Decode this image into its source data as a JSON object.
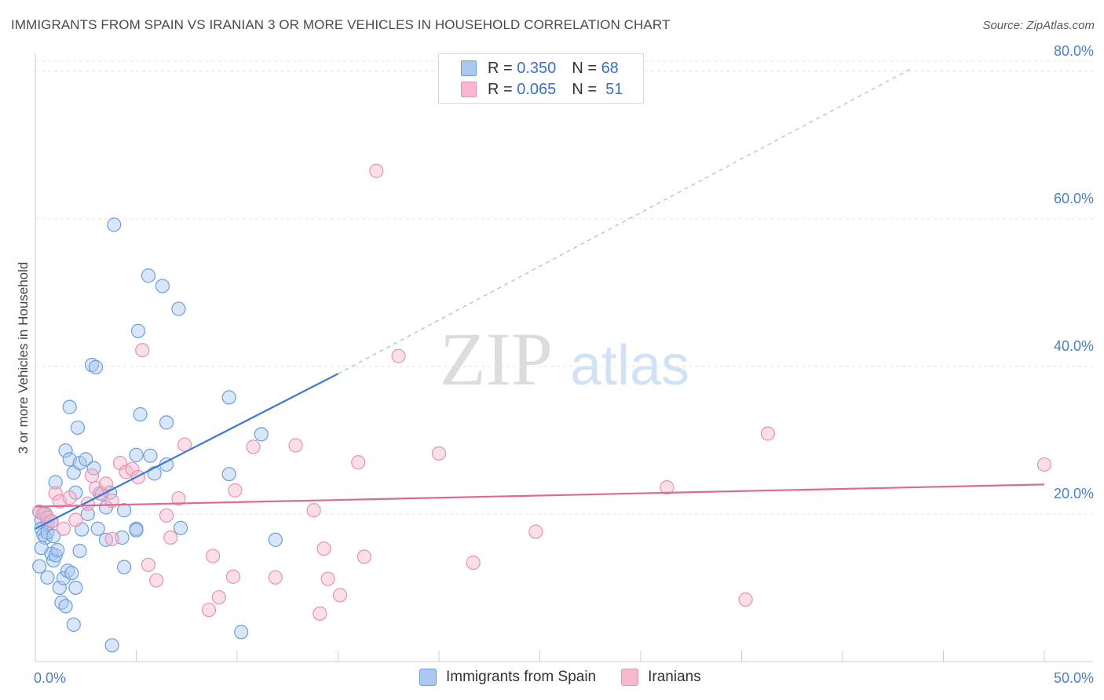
{
  "header": {
    "title": "IMMIGRANTS FROM SPAIN VS IRANIAN 3 OR MORE VEHICLES IN HOUSEHOLD CORRELATION CHART",
    "source": "Source: ZipAtlas.com"
  },
  "watermark": {
    "zip": "ZIP",
    "atlas": "atlas"
  },
  "legend": {
    "rows": [
      {
        "r_label": "R =",
        "r_value": "0.350",
        "n_label": "N =",
        "n_value": "68",
        "color": "#aac8f0"
      },
      {
        "r_label": "R =",
        "r_value": "0.065",
        "n_label": "N =",
        "n_value": "51",
        "color": "#f5b8cc"
      }
    ]
  },
  "bottom_legend": [
    {
      "label": "Immigrants from Spain",
      "color": "#aac8f0"
    },
    {
      "label": "Iranians",
      "color": "#f5b8cc"
    }
  ],
  "chart_data": {
    "type": "scatter",
    "title": "IMMIGRANTS FROM SPAIN VS IRANIAN 3 OR MORE VEHICLES IN HOUSEHOLD CORRELATION CHART",
    "xlabel": "",
    "ylabel": "3 or more Vehicles in Household",
    "xlim": [
      0,
      50
    ],
    "ylim": [
      0,
      82
    ],
    "x_tick_labels": [
      "0.0%",
      "50.0%"
    ],
    "y_ticks": [
      20,
      40,
      60,
      80
    ],
    "y_tick_labels": [
      "20.0%",
      "40.0%",
      "60.0%",
      "80.0%"
    ],
    "grid": true,
    "series": [
      {
        "name": "Immigrants from Spain",
        "color": "#6a9ee0",
        "fill": "#aac8f0",
        "trend": {
          "x0": 0,
          "y0": 18.0,
          "x1": 15,
          "y1": 39.0,
          "dashed_to_x": 43.5,
          "dashed_to_y": 80.5,
          "color": "#3a78d0"
        },
        "points": [
          [
            0.2,
            20.3
          ],
          [
            0.3,
            19.2
          ],
          [
            0.5,
            20.0
          ],
          [
            0.6,
            18.7
          ],
          [
            0.8,
            19.0
          ],
          [
            0.3,
            18.0
          ],
          [
            0.4,
            17.2
          ],
          [
            0.5,
            16.8
          ],
          [
            0.6,
            17.5
          ],
          [
            0.9,
            17.0
          ],
          [
            0.3,
            15.4
          ],
          [
            0.8,
            14.6
          ],
          [
            0.9,
            13.7
          ],
          [
            1.0,
            14.4
          ],
          [
            1.1,
            15.1
          ],
          [
            0.2,
            12.9
          ],
          [
            0.6,
            11.4
          ],
          [
            1.2,
            10.0
          ],
          [
            1.4,
            11.3
          ],
          [
            1.6,
            12.3
          ],
          [
            1.8,
            12.0
          ],
          [
            2.0,
            10.0
          ],
          [
            1.3,
            8.0
          ],
          [
            1.5,
            7.5
          ],
          [
            1.9,
            5.0
          ],
          [
            3.8,
            2.2
          ],
          [
            10.2,
            4.0
          ],
          [
            1.0,
            24.3
          ],
          [
            1.5,
            28.6
          ],
          [
            1.7,
            27.4
          ],
          [
            1.9,
            25.6
          ],
          [
            2.0,
            22.9
          ],
          [
            2.2,
            26.9
          ],
          [
            2.5,
            27.4
          ],
          [
            2.9,
            26.2
          ],
          [
            1.7,
            34.5
          ],
          [
            2.1,
            31.7
          ],
          [
            2.8,
            40.2
          ],
          [
            3.0,
            39.9
          ],
          [
            3.2,
            22.8
          ],
          [
            3.5,
            20.9
          ],
          [
            3.5,
            16.5
          ],
          [
            2.6,
            20.0
          ],
          [
            2.3,
            17.9
          ],
          [
            2.2,
            15.0
          ],
          [
            3.1,
            18.0
          ],
          [
            3.7,
            22.9
          ],
          [
            4.3,
            16.8
          ],
          [
            4.4,
            20.5
          ],
          [
            4.4,
            12.8
          ],
          [
            5.0,
            18.0
          ],
          [
            5.0,
            17.8
          ],
          [
            5.0,
            28.0
          ],
          [
            5.2,
            33.5
          ],
          [
            5.7,
            27.9
          ],
          [
            5.9,
            25.5
          ],
          [
            6.5,
            26.7
          ],
          [
            6.5,
            32.4
          ],
          [
            7.2,
            18.1
          ],
          [
            7.1,
            47.8
          ],
          [
            6.3,
            50.9
          ],
          [
            5.6,
            52.3
          ],
          [
            5.1,
            44.8
          ],
          [
            3.9,
            59.2
          ],
          [
            9.6,
            25.4
          ],
          [
            9.6,
            35.8
          ],
          [
            11.2,
            30.8
          ],
          [
            11.9,
            16.5
          ]
        ]
      },
      {
        "name": "Iranians",
        "color": "#e890b0",
        "fill": "#f5b8cc",
        "trend": {
          "x0": 0,
          "y0": 21.0,
          "x1": 50,
          "y1": 24.0,
          "color": "#e06890"
        },
        "points": [
          [
            0.2,
            20.3
          ],
          [
            0.4,
            20.0
          ],
          [
            0.6,
            19.5
          ],
          [
            0.8,
            19.0
          ],
          [
            1.0,
            22.8
          ],
          [
            1.2,
            21.7
          ],
          [
            1.4,
            18.0
          ],
          [
            1.7,
            22.2
          ],
          [
            2.0,
            19.2
          ],
          [
            2.6,
            21.4
          ],
          [
            2.8,
            25.2
          ],
          [
            3.0,
            23.5
          ],
          [
            3.3,
            22.7
          ],
          [
            3.5,
            24.1
          ],
          [
            3.8,
            16.6
          ],
          [
            4.2,
            26.9
          ],
          [
            4.5,
            25.7
          ],
          [
            4.8,
            26.1
          ],
          [
            5.1,
            25.0
          ],
          [
            5.3,
            42.2
          ],
          [
            5.6,
            13.1
          ],
          [
            6.0,
            11.0
          ],
          [
            6.5,
            19.8
          ],
          [
            6.7,
            16.8
          ],
          [
            7.1,
            22.1
          ],
          [
            7.4,
            29.4
          ],
          [
            8.6,
            7.0
          ],
          [
            8.8,
            14.3
          ],
          [
            9.1,
            8.7
          ],
          [
            9.8,
            11.5
          ],
          [
            9.9,
            23.2
          ],
          [
            10.8,
            29.1
          ],
          [
            11.9,
            11.4
          ],
          [
            12.9,
            29.3
          ],
          [
            13.8,
            20.5
          ],
          [
            14.1,
            6.5
          ],
          [
            14.3,
            15.3
          ],
          [
            14.5,
            11.2
          ],
          [
            15.1,
            9.0
          ],
          [
            16.0,
            27.0
          ],
          [
            16.3,
            14.2
          ],
          [
            16.9,
            66.5
          ],
          [
            18.0,
            41.4
          ],
          [
            20.0,
            28.2
          ],
          [
            21.7,
            13.4
          ],
          [
            24.8,
            17.6
          ],
          [
            31.3,
            23.6
          ],
          [
            35.2,
            8.4
          ],
          [
            36.3,
            30.9
          ],
          [
            50.0,
            26.7
          ],
          [
            3.8,
            21.8
          ]
        ]
      }
    ]
  }
}
